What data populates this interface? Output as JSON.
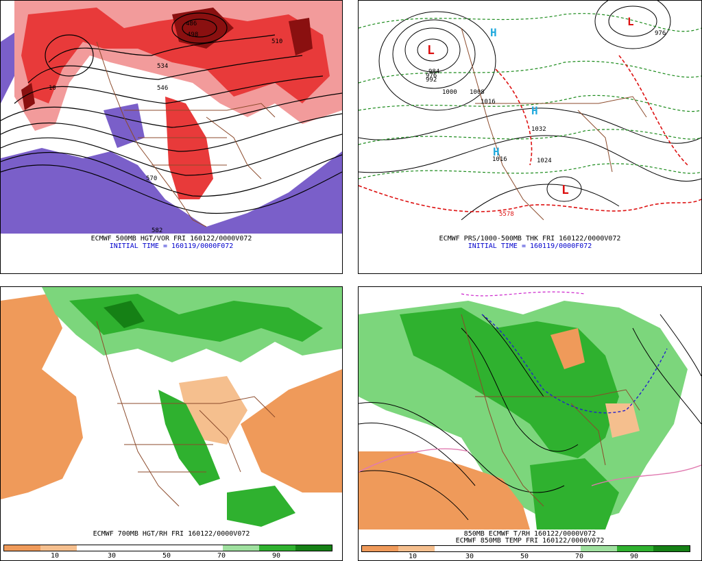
{
  "panels": {
    "p1": {
      "caption1": "ECMWF 500MB HGT/VOR FRI 160122/0000V072",
      "caption2": "INITIAL TIME = 160119/0000F072",
      "contour_labels": [
        "486",
        "498",
        "510",
        "534",
        "546",
        "570",
        "582",
        "10"
      ]
    },
    "p2": {
      "caption1": "ECMWF PRS/1000-500MB THK FRI 160122/0000V072",
      "caption2": "INITIAL TIME = 160119/0000F072",
      "pressure_labels": [
        "976",
        "984",
        "992",
        "1000",
        "1008",
        "1016",
        "1024",
        "1032",
        "1016",
        "5578",
        "976"
      ],
      "high_symbol": "H",
      "low_symbol": "L"
    },
    "p3": {
      "caption1": "ECMWF 700MB HGT/RH FRI 160122/0000V072",
      "colorbar_ticks": [
        "10",
        "30",
        "50",
        "70",
        "90"
      ]
    },
    "p4": {
      "caption1": "850MB ECMWF T/RH 160122/0000V072",
      "caption2": "ECMWF 850MB TEMP FRI 160122/0000V072",
      "colorbar_ticks": [
        "10",
        "30",
        "50",
        "70",
        "90"
      ]
    }
  },
  "colors": {
    "vort_red": "#e83a3a",
    "vort_pink": "#f29b9b",
    "vort_dark": "#8a1010",
    "vort_purple": "#7a5fc9",
    "rh_dry1": "#ef9a5a",
    "rh_dry2": "#f5bf8e",
    "rh_moist1": "#7cd67c",
    "rh_moist2": "#2fb12f",
    "rh_moist3": "#158015",
    "border_brown": "#8b4a2b",
    "thk_red": "#dd1111",
    "thk_green": "#1a8a1a",
    "symbol_red": "#dd1111",
    "symbol_cyan": "#22aadd"
  },
  "colorbar_colors": [
    "#ef9a5a",
    "#f5bf8e",
    "#ffffff",
    "#ffffff",
    "#ffffff",
    "#ffffff",
    "#9fe09f",
    "#2fb12f",
    "#158015"
  ]
}
